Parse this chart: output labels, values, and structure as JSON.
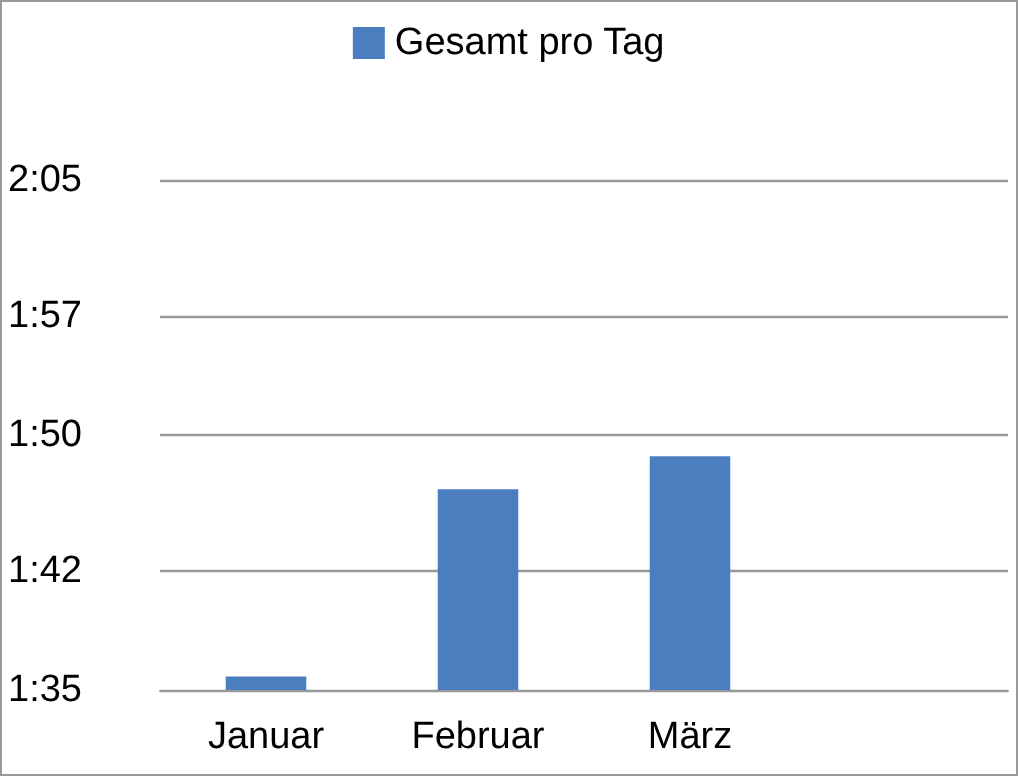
{
  "chart_data": {
    "type": "bar",
    "categories": [
      "Januar",
      "Februar",
      "März",
      null
    ],
    "series": [
      {
        "name": "Gesamt pro Tag",
        "color": "#4a7ebf",
        "values": [
          1.5965,
          1.78,
          1.8125,
          null
        ]
      }
    ],
    "ylim": [
      1.5833,
      2.0833
    ],
    "yticks": [
      {
        "value": 1.5833,
        "label": "1:35"
      },
      {
        "value": 1.7,
        "label": "1:42"
      },
      {
        "value": 1.8333,
        "label": "1:50"
      },
      {
        "value": 1.95,
        "label": "1:57"
      },
      {
        "value": 2.0833,
        "label": "2:05"
      }
    ],
    "grid": "y",
    "legend": "top"
  }
}
